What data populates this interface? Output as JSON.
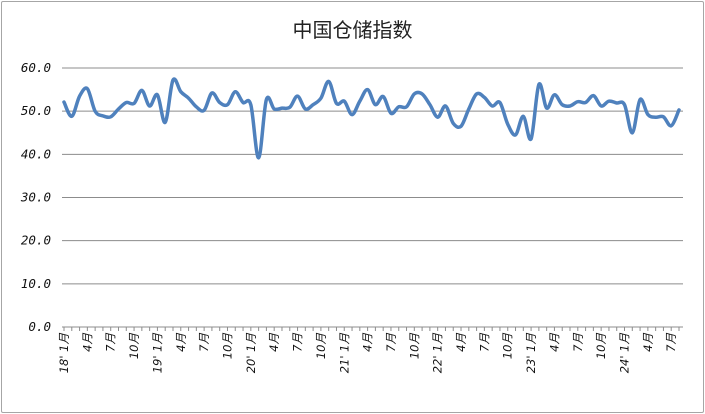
{
  "chart_data": {
    "type": "line",
    "title": "中国仓储指数",
    "xlabel": "",
    "ylabel": "",
    "ylim": [
      0,
      60
    ],
    "yticks": [
      "0.0",
      "10.0",
      "20.0",
      "30.0",
      "40.0",
      "50.0",
      "60.0"
    ],
    "grid": true,
    "legend": "none",
    "line_color": "#4f81bd",
    "x_tick_labels": [
      "18' 1月",
      "4月",
      "7月",
      "10月",
      "19' 1月",
      "4月",
      "7月",
      "10月",
      "20' 1月",
      "4月",
      "7月",
      "10月",
      "21' 1月",
      "4月",
      "7月",
      "10月",
      "22' 1月",
      "4月",
      "7月",
      "10月",
      "23' 1月",
      "4月",
      "7月",
      "10月",
      "24' 1月",
      "4月",
      "7月"
    ],
    "series": [
      {
        "name": "",
        "values": [
          52.1,
          48.8,
          53.5,
          55.2,
          50.0,
          48.9,
          48.7,
          50.5,
          52.0,
          51.8,
          54.8,
          51.2,
          53.8,
          47.4,
          57.2,
          54.5,
          53.0,
          51.0,
          50.2,
          54.2,
          52.0,
          51.5,
          54.5,
          52.0,
          51.5,
          39.2,
          52.7,
          50.5,
          50.7,
          50.9,
          53.5,
          50.5,
          51.5,
          53.0,
          56.9,
          51.8,
          52.3,
          49.2,
          52.3,
          55.0,
          51.5,
          53.4,
          49.5,
          51.0,
          51.0,
          54.0,
          54.0,
          51.5,
          48.6,
          51.2,
          47.2,
          46.5,
          50.5,
          54.0,
          53.2,
          51.2,
          52.0,
          47.0,
          44.5,
          48.8,
          43.6,
          56.2,
          50.7,
          53.8,
          51.5,
          51.2,
          52.2,
          52.0,
          53.6,
          51.2,
          52.3,
          51.9,
          51.5,
          45.0,
          52.7,
          49.2,
          48.6,
          48.7,
          46.6,
          50.3
        ]
      }
    ]
  }
}
